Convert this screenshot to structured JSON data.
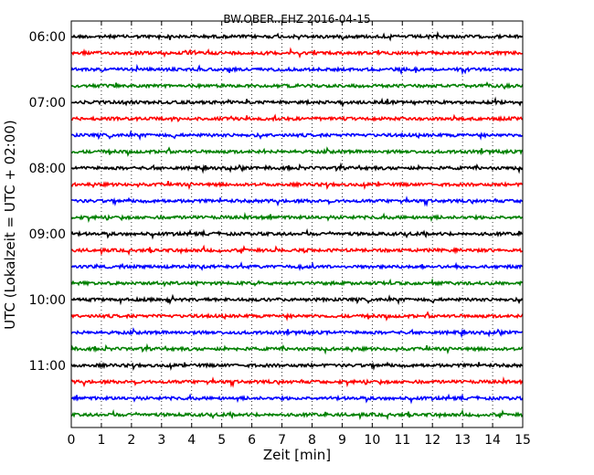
{
  "chart_data": {
    "type": "line",
    "title": "BW.OBER..EHZ 2016-04-15",
    "xlabel": "Zeit  [min]",
    "ylabel": "UTC (Lokalzeit = UTC + 02:00)",
    "xlim": [
      0,
      15
    ],
    "x_ticks": [
      "0",
      "1",
      "2",
      "3",
      "4",
      "5",
      "6",
      "7",
      "8",
      "9",
      "10",
      "11",
      "12",
      "13",
      "14",
      "15"
    ],
    "y_tick_labels": [
      "06:00",
      "07:00",
      "08:00",
      "09:00",
      "10:00",
      "11:00"
    ],
    "trace_minutes_per_line": 15,
    "grid": "vertical dotted",
    "traces": [
      {
        "start": "06:00",
        "color": "#000000"
      },
      {
        "start": "06:15",
        "color": "#ff0000"
      },
      {
        "start": "06:30",
        "color": "#0000ff"
      },
      {
        "start": "06:45",
        "color": "#008000"
      },
      {
        "start": "07:00",
        "color": "#000000"
      },
      {
        "start": "07:15",
        "color": "#ff0000"
      },
      {
        "start": "07:30",
        "color": "#0000ff"
      },
      {
        "start": "07:45",
        "color": "#008000"
      },
      {
        "start": "08:00",
        "color": "#000000"
      },
      {
        "start": "08:15",
        "color": "#ff0000"
      },
      {
        "start": "08:30",
        "color": "#0000ff"
      },
      {
        "start": "08:45",
        "color": "#008000"
      },
      {
        "start": "09:00",
        "color": "#000000"
      },
      {
        "start": "09:15",
        "color": "#ff0000"
      },
      {
        "start": "09:30",
        "color": "#0000ff"
      },
      {
        "start": "09:45",
        "color": "#008000"
      },
      {
        "start": "10:00",
        "color": "#000000"
      },
      {
        "start": "10:15",
        "color": "#ff0000"
      },
      {
        "start": "10:30",
        "color": "#0000ff"
      },
      {
        "start": "10:45",
        "color": "#008000"
      },
      {
        "start": "11:00",
        "color": "#000000"
      },
      {
        "start": "11:15",
        "color": "#ff0000"
      },
      {
        "start": "11:30",
        "color": "#0000ff"
      },
      {
        "start": "11:45",
        "color": "#008000"
      }
    ]
  }
}
